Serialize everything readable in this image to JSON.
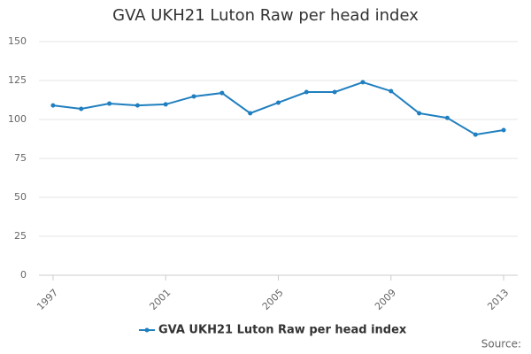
{
  "chart_data": {
    "type": "line",
    "title": "GVA UKH21 Luton Raw per head index",
    "x": [
      1997,
      1998,
      1999,
      2000,
      2001,
      2002,
      2003,
      2004,
      2005,
      2006,
      2007,
      2008,
      2009,
      2010,
      2011,
      2012,
      2013
    ],
    "series": [
      {
        "name": "GVA UKH21 Luton Raw per head index",
        "color": "#1f7fbf",
        "values": [
          109,
          106.8,
          110.2,
          109,
          109.7,
          114.8,
          117,
          104,
          110.8,
          117.6,
          117.6,
          123.9,
          118.2,
          104,
          101,
          90.3,
          93.2
        ]
      }
    ],
    "xlim": [
      1996.5,
      2013.5
    ],
    "xticks": [
      1997,
      2001,
      2005,
      2009,
      2013
    ],
    "ylim": [
      0,
      150
    ],
    "yticks": [
      0,
      25,
      50,
      75,
      100,
      125,
      150
    ],
    "grid": true,
    "legend": "bottom",
    "source": "Source:"
  }
}
